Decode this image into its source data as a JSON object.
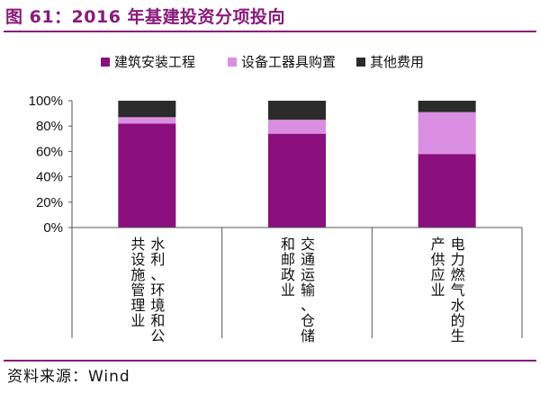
{
  "figure": {
    "title": "图 61：2016 年基建投资分项投向",
    "source": "资料来源：Wind"
  },
  "colors": {
    "brand": "#8a1a7a",
    "series": [
      "#8b0f7d",
      "#d98ee2",
      "#2b2b2b"
    ]
  },
  "chart_data": {
    "type": "bar",
    "stacked": true,
    "categories": [
      [
        "水利、环境和公",
        "共设施管理业"
      ],
      [
        "交通运输、仓储",
        "和邮政业"
      ],
      [
        "电力燃气水的生",
        "产供应业"
      ]
    ],
    "series": [
      {
        "name": "建筑安装工程",
        "values": [
          82,
          74,
          58
        ]
      },
      {
        "name": "设备工器具购置",
        "values": [
          5,
          11,
          33
        ]
      },
      {
        "name": "其他费用",
        "values": [
          13,
          15,
          9
        ]
      }
    ],
    "ylim": [
      0,
      100
    ],
    "yticks": [
      0,
      20,
      40,
      60,
      80,
      100
    ],
    "ytick_labels": [
      "0%",
      "20%",
      "40%",
      "60%",
      "80%",
      "100%"
    ],
    "legend_position": "top",
    "grid": false
  }
}
